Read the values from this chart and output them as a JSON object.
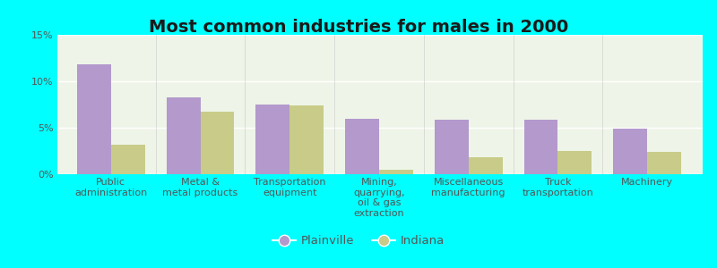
{
  "title": "Most common industries for males in 2000",
  "categories": [
    "Public\nadministration",
    "Metal &\nmetal products",
    "Transportation\nequipment",
    "Mining,\nquarrying,\noil & gas\nextraction",
    "Miscellaneous\nmanufacturing",
    "Truck\ntransportation",
    "Machinery"
  ],
  "plainville_values": [
    11.8,
    8.3,
    7.5,
    6.0,
    5.9,
    5.9,
    4.9
  ],
  "indiana_values": [
    3.2,
    6.7,
    7.4,
    0.5,
    1.8,
    2.5,
    2.4
  ],
  "plainville_color": "#b399cc",
  "indiana_color": "#c8cc88",
  "background_color": "#00ffff",
  "chart_bg": "#eef5e8",
  "ylim": [
    0,
    15
  ],
  "yticks": [
    0,
    5,
    10,
    15
  ],
  "ytick_labels": [
    "0%",
    "5%",
    "10%",
    "15%"
  ],
  "legend_labels": [
    "Plainville",
    "Indiana"
  ],
  "bar_width": 0.38,
  "title_fontsize": 14,
  "tick_fontsize": 8,
  "legend_fontsize": 9.5,
  "label_color": "#555555"
}
